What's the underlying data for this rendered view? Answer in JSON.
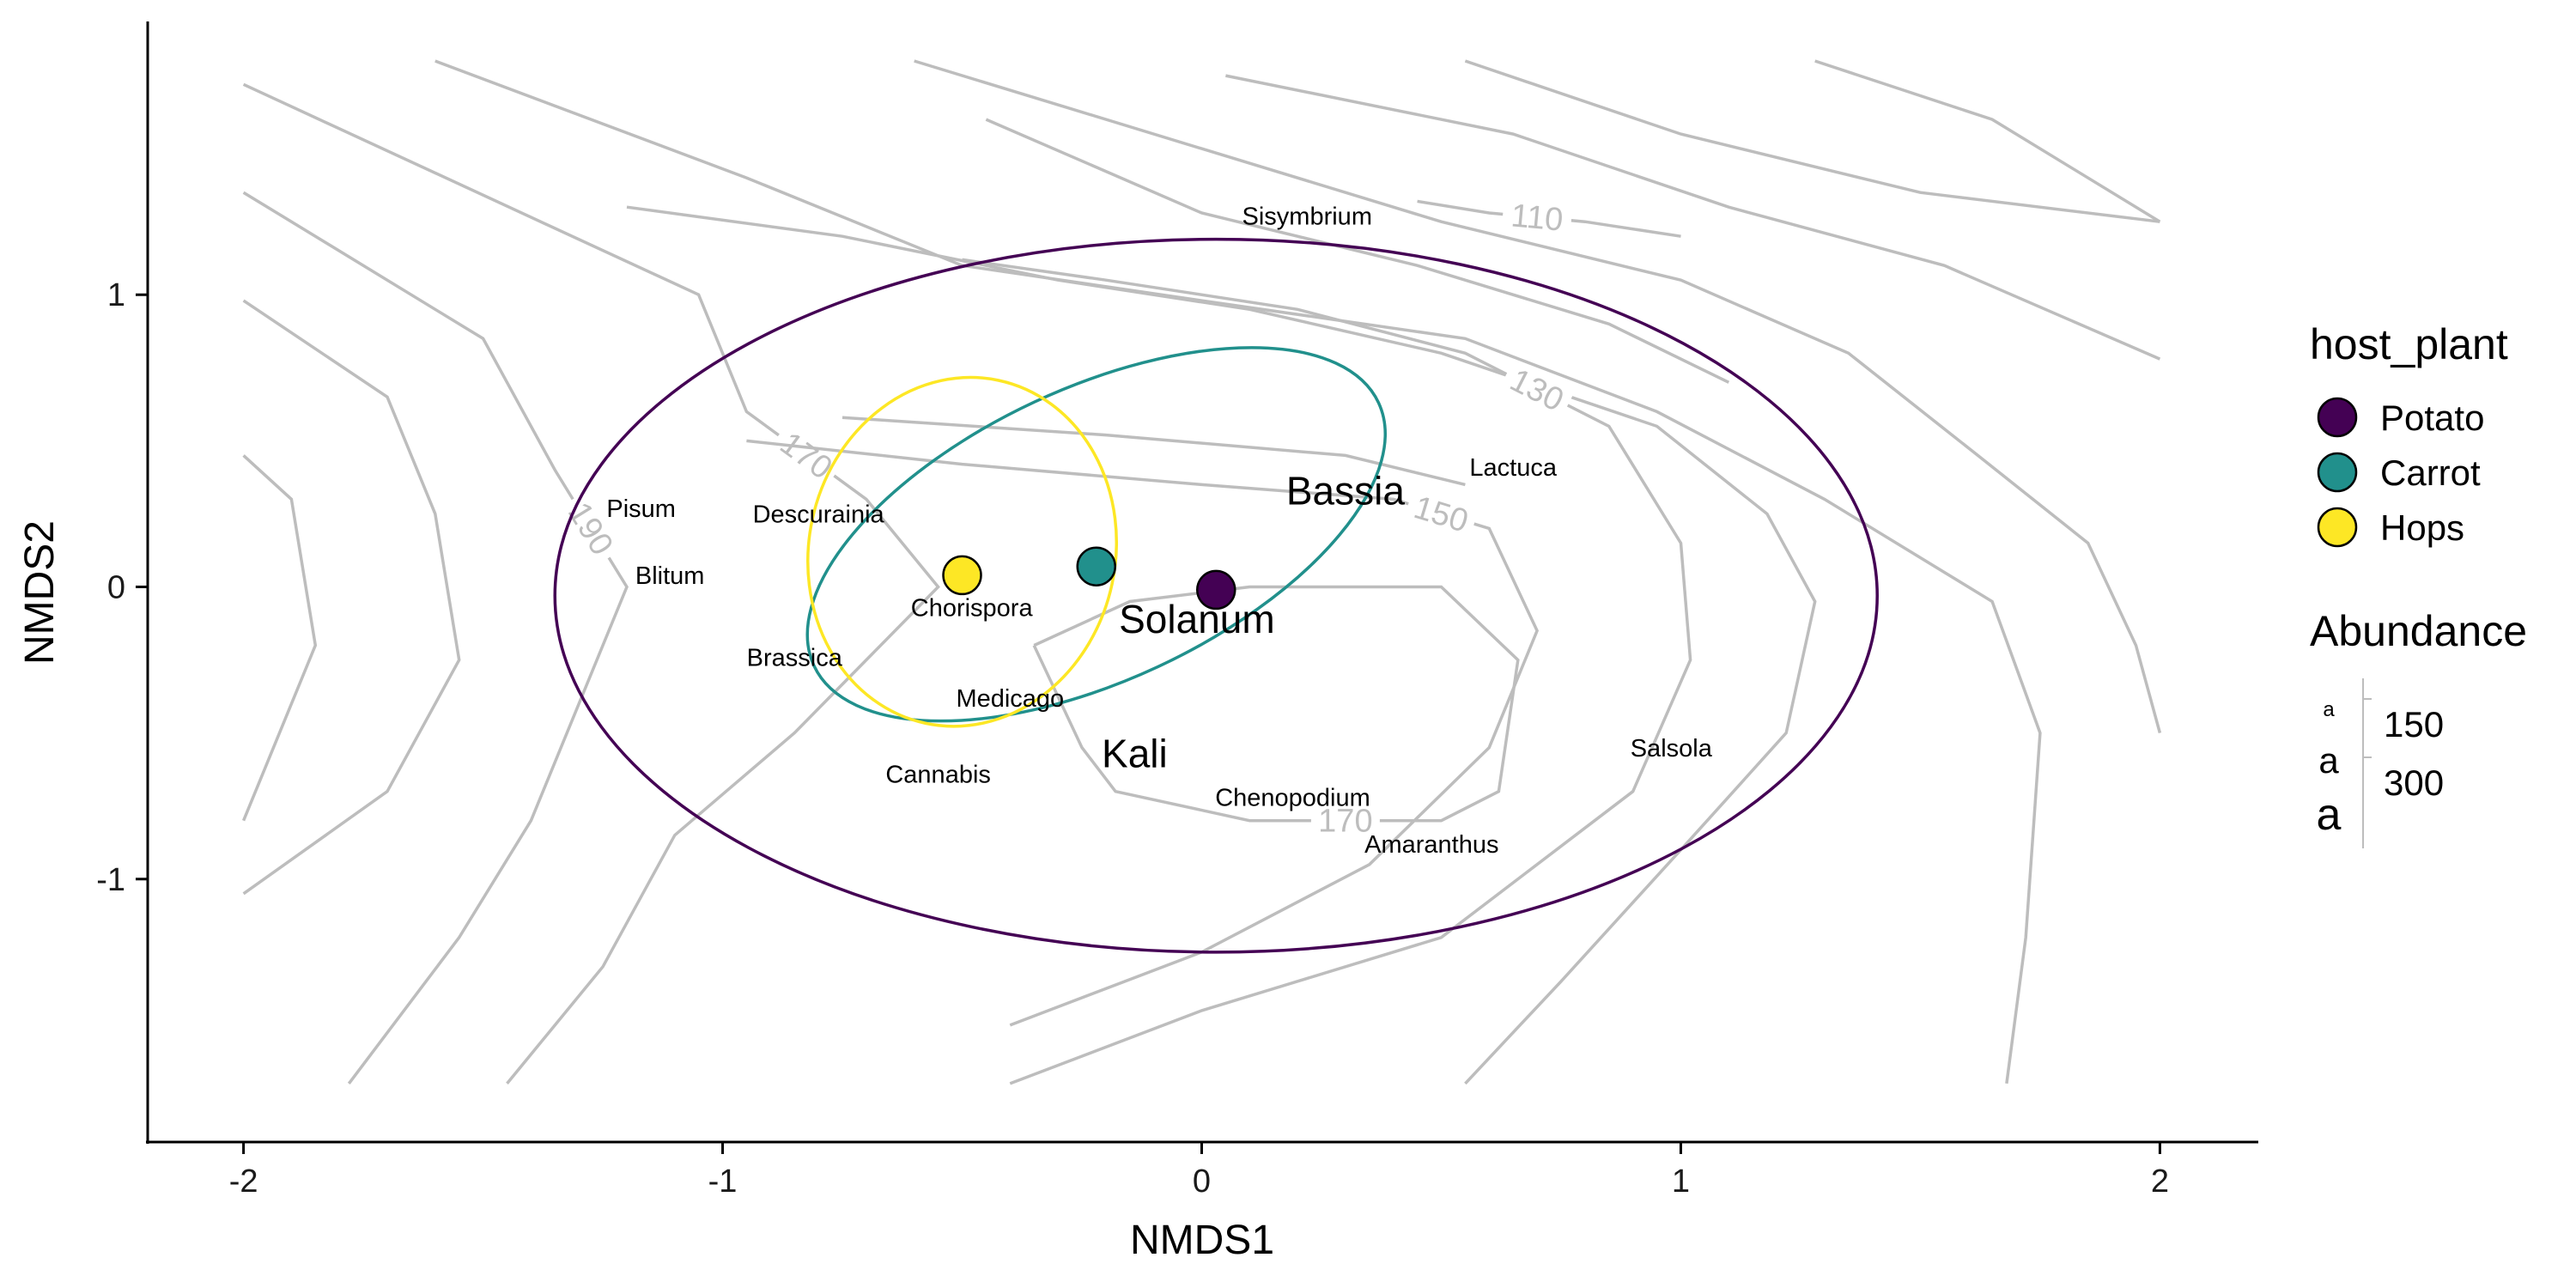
{
  "chart_data": {
    "type": "scatter",
    "xlabel": "NMDS1",
    "ylabel": "NMDS2",
    "xlim": [
      -2.2,
      2.2
    ],
    "ylim": [
      -1.9,
      1.95
    ],
    "x_ticks": [
      -2,
      -1,
      0,
      1,
      2
    ],
    "x_tick_labels": [
      "-2",
      "-1",
      "0",
      "1",
      "2"
    ],
    "y_ticks": [
      -1,
      0,
      1
    ],
    "y_tick_labels": [
      "-1",
      "0",
      "1"
    ],
    "grid": false,
    "legend_placement": "right",
    "series": [
      {
        "name": "Potato",
        "color": "#440154",
        "centroid": [
          0.03,
          -0.01
        ],
        "ellipse": {
          "cx": 0.03,
          "cy": -0.03,
          "rx": 1.38,
          "ry": 1.22,
          "angle_deg": 0
        }
      },
      {
        "name": "Carrot",
        "color": "#21908C",
        "centroid": [
          -0.22,
          0.07
        ],
        "ellipse": {
          "cx": -0.22,
          "cy": 0.18,
          "rx": 0.65,
          "ry": 0.5,
          "angle_deg": 25
        }
      },
      {
        "name": "Hops",
        "color": "#FDE725",
        "centroid": [
          -0.5,
          0.04
        ],
        "ellipse": {
          "cx": -0.5,
          "cy": 0.12,
          "rx": 0.32,
          "ry": 0.6,
          "angle_deg": -12
        }
      }
    ],
    "species": [
      {
        "name": "Sisymbrium",
        "x": 0.22,
        "y": 1.27,
        "abundance": 150
      },
      {
        "name": "Lactuca",
        "x": 0.65,
        "y": 0.41,
        "abundance": 150
      },
      {
        "name": "Bassia",
        "x": 0.3,
        "y": 0.33,
        "abundance": 300
      },
      {
        "name": "Pisum",
        "x": -1.17,
        "y": 0.27,
        "abundance": 150
      },
      {
        "name": "Descurainia",
        "x": -0.8,
        "y": 0.25,
        "abundance": 150
      },
      {
        "name": "Blitum",
        "x": -1.11,
        "y": 0.04,
        "abundance": 150
      },
      {
        "name": "Chorispora",
        "x": -0.48,
        "y": -0.07,
        "abundance": 150
      },
      {
        "name": "Solanum",
        "x": -0.01,
        "y": -0.11,
        "abundance": 300
      },
      {
        "name": "Brassica",
        "x": -0.85,
        "y": -0.24,
        "abundance": 150
      },
      {
        "name": "Medicago",
        "x": -0.4,
        "y": -0.38,
        "abundance": 150
      },
      {
        "name": "Kali",
        "x": -0.14,
        "y": -0.57,
        "abundance": 300
      },
      {
        "name": "Salsola",
        "x": 0.98,
        "y": -0.55,
        "abundance": 150
      },
      {
        "name": "Cannabis",
        "x": -0.55,
        "y": -0.64,
        "abundance": 150
      },
      {
        "name": "Chenopodium",
        "x": 0.19,
        "y": -0.72,
        "abundance": 150
      },
      {
        "name": "Amaranthus",
        "x": 0.48,
        "y": -0.88,
        "abundance": 150
      }
    ],
    "contours": [
      {
        "level": "170",
        "points": [
          [
            -2,
            1.72
          ],
          [
            -1.05,
            1.0
          ],
          [
            -0.95,
            0.6
          ],
          [
            -0.7,
            0.3
          ],
          [
            -0.55,
            0.0
          ],
          [
            -0.85,
            -0.5
          ],
          [
            -1.1,
            -0.85
          ],
          [
            -1.25,
            -1.3
          ],
          [
            -1.45,
            -1.7
          ]
        ]
      },
      {
        "level": "190",
        "points": [
          [
            -2,
            1.35
          ],
          [
            -1.5,
            0.85
          ],
          [
            -1.35,
            0.4
          ],
          [
            -1.2,
            0.0
          ],
          [
            -1.4,
            -0.8
          ],
          [
            -1.55,
            -1.2
          ],
          [
            -1.78,
            -1.7
          ]
        ]
      },
      {
        "level": "",
        "points": [
          [
            -2,
            0.98
          ],
          [
            -1.7,
            0.65
          ],
          [
            -1.6,
            0.25
          ],
          [
            -1.55,
            -0.25
          ],
          [
            -1.7,
            -0.7
          ],
          [
            -2,
            -1.05
          ]
        ]
      },
      {
        "level": "",
        "points": [
          [
            -2,
            0.45
          ],
          [
            -1.9,
            0.3
          ],
          [
            -1.85,
            -0.2
          ],
          [
            -1.95,
            -0.6
          ],
          [
            -2,
            -0.8
          ]
        ]
      },
      {
        "level": "",
        "points": [
          [
            -1.6,
            1.8
          ],
          [
            -0.95,
            1.4
          ],
          [
            -0.5,
            1.1
          ],
          [
            0.0,
            0.98
          ],
          [
            0.55,
            0.85
          ],
          [
            0.95,
            0.6
          ],
          [
            1.3,
            0.3
          ],
          [
            1.65,
            -0.05
          ],
          [
            1.75,
            -0.5
          ],
          [
            1.72,
            -1.2
          ],
          [
            1.68,
            -1.7
          ]
        ]
      },
      {
        "level": "",
        "points": [
          [
            -0.6,
            1.8
          ],
          [
            0.0,
            1.5
          ],
          [
            0.5,
            1.25
          ],
          [
            1.0,
            1.05
          ],
          [
            1.35,
            0.8
          ],
          [
            1.62,
            0.45
          ],
          [
            1.85,
            0.15
          ],
          [
            1.95,
            -0.2
          ],
          [
            2.0,
            -0.5
          ]
        ]
      },
      {
        "level": "",
        "points": [
          [
            0.05,
            1.75
          ],
          [
            0.65,
            1.55
          ],
          [
            1.1,
            1.3
          ],
          [
            1.55,
            1.1
          ],
          [
            2.0,
            0.78
          ]
        ]
      },
      {
        "level": "",
        "points": [
          [
            0.55,
            1.8
          ],
          [
            1.0,
            1.55
          ],
          [
            1.5,
            1.35
          ],
          [
            2.0,
            1.25
          ]
        ]
      },
      {
        "level": "",
        "points": [
          [
            1.28,
            1.8
          ],
          [
            1.65,
            1.6
          ],
          [
            2.0,
            1.25
          ]
        ]
      },
      {
        "level": "",
        "points": [
          [
            -1.2,
            1.3
          ],
          [
            -0.75,
            1.2
          ],
          [
            -0.3,
            1.05
          ],
          [
            0.1,
            0.95
          ],
          [
            0.5,
            0.8
          ],
          [
            0.95,
            0.55
          ],
          [
            1.18,
            0.25
          ],
          [
            1.28,
            -0.05
          ],
          [
            1.22,
            -0.5
          ],
          [
            1.0,
            -0.9
          ],
          [
            0.75,
            -1.35
          ],
          [
            0.55,
            -1.7
          ]
        ]
      },
      {
        "level": "",
        "points": [
          [
            -0.45,
            1.6
          ],
          [
            0.0,
            1.28
          ],
          [
            0.45,
            1.1
          ],
          [
            0.85,
            0.9
          ],
          [
            1.1,
            0.7
          ]
        ]
      },
      {
        "level": "110",
        "points": [
          [
            0.45,
            1.32
          ],
          [
            0.6,
            1.28
          ],
          [
            0.8,
            1.25
          ],
          [
            1.0,
            1.2
          ]
        ]
      },
      {
        "level": "130",
        "points": [
          [
            -0.5,
            1.12
          ],
          [
            -0.2,
            1.05
          ],
          [
            0.2,
            0.95
          ],
          [
            0.55,
            0.8
          ],
          [
            0.85,
            0.55
          ],
          [
            1.0,
            0.15
          ],
          [
            1.02,
            -0.25
          ],
          [
            0.9,
            -0.7
          ],
          [
            0.5,
            -1.2
          ],
          [
            0.0,
            -1.45
          ],
          [
            -0.4,
            -1.7
          ]
        ]
      },
      {
        "level": "150",
        "points": [
          [
            -0.95,
            0.5
          ],
          [
            -0.5,
            0.42
          ],
          [
            0.0,
            0.35
          ],
          [
            0.4,
            0.3
          ],
          [
            0.6,
            0.2
          ],
          [
            0.7,
            -0.15
          ],
          [
            0.6,
            -0.55
          ],
          [
            0.35,
            -0.95
          ],
          [
            0.0,
            -1.25
          ],
          [
            -0.4,
            -1.5
          ]
        ]
      },
      {
        "level": "",
        "points": [
          [
            -0.75,
            0.58
          ],
          [
            -0.2,
            0.52
          ],
          [
            0.3,
            0.45
          ],
          [
            0.55,
            0.35
          ]
        ]
      },
      {
        "level": "170",
        "points": [
          [
            -0.35,
            -0.2
          ],
          [
            -0.25,
            -0.55
          ],
          [
            -0.18,
            -0.7
          ],
          [
            0.1,
            -0.8
          ],
          [
            0.5,
            -0.8
          ],
          [
            0.62,
            -0.7
          ],
          [
            0.66,
            -0.25
          ],
          [
            0.5,
            0.0
          ],
          [
            0.1,
            0.0
          ],
          [
            -0.15,
            -0.05
          ],
          [
            -0.35,
            -0.2
          ]
        ]
      }
    ],
    "abundance_legend": {
      "title": "Abundance",
      "levels": [
        "150",
        "300"
      ],
      "glyph": "a"
    },
    "color_legend_title": "host_plant"
  }
}
